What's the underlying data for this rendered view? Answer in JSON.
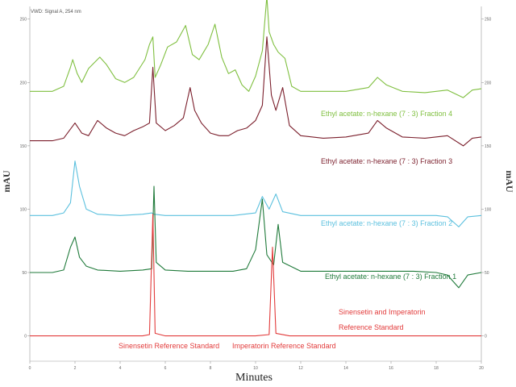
{
  "chart_data": {
    "type": "line",
    "header": "VWD: Signal A, 254 nm",
    "xlabel": "Minutes",
    "ylabel_left": "mAU",
    "ylabel_right": "mAU",
    "xlim": [
      0,
      20
    ],
    "x_ticks": [
      "0",
      "2",
      "4",
      "6",
      "8",
      "10",
      "12",
      "14",
      "16",
      "18",
      "20"
    ],
    "ylim": [
      -20,
      260
    ],
    "y_ticks_left": [
      "0",
      "50",
      "100",
      "150",
      "200",
      "250"
    ],
    "series": [
      {
        "name": "Ethyl acetate: n-hexane (7 : 3) Fraction 4",
        "color": "#7fbf3f",
        "points": [
          [
            0,
            193
          ],
          [
            1,
            193
          ],
          [
            1.5,
            197
          ],
          [
            1.8,
            212
          ],
          [
            1.9,
            218
          ],
          [
            2.1,
            207
          ],
          [
            2.3,
            200
          ],
          [
            2.6,
            211
          ],
          [
            3.1,
            220
          ],
          [
            3.4,
            214
          ],
          [
            3.8,
            203
          ],
          [
            4.2,
            200
          ],
          [
            4.6,
            204
          ],
          [
            5.1,
            218
          ],
          [
            5.3,
            230
          ],
          [
            5.45,
            236
          ],
          [
            5.55,
            204
          ],
          [
            5.8,
            214
          ],
          [
            6.1,
            228
          ],
          [
            6.5,
            232
          ],
          [
            6.9,
            245
          ],
          [
            7.2,
            222
          ],
          [
            7.5,
            218
          ],
          [
            7.9,
            230
          ],
          [
            8.2,
            246
          ],
          [
            8.5,
            220
          ],
          [
            8.8,
            207
          ],
          [
            9.1,
            210
          ],
          [
            9.4,
            198
          ],
          [
            9.7,
            193
          ],
          [
            10.0,
            205
          ],
          [
            10.3,
            225
          ],
          [
            10.5,
            268
          ],
          [
            10.6,
            240
          ],
          [
            10.8,
            230
          ],
          [
            11.0,
            224
          ],
          [
            11.3,
            219
          ],
          [
            11.6,
            197
          ],
          [
            12.0,
            193
          ],
          [
            13.0,
            193
          ],
          [
            14.0,
            193
          ],
          [
            15.0,
            196
          ],
          [
            15.4,
            204
          ],
          [
            15.8,
            198
          ],
          [
            16.5,
            193
          ],
          [
            17.5,
            192
          ],
          [
            18.5,
            194
          ],
          [
            19.2,
            188
          ],
          [
            19.6,
            194
          ],
          [
            20,
            195
          ]
        ]
      },
      {
        "name": "Ethyl acetate: n-hexane (7 : 3) Fraction 3",
        "color": "#7b1f2c",
        "points": [
          [
            0,
            154
          ],
          [
            1,
            154
          ],
          [
            1.5,
            156
          ],
          [
            2.0,
            168
          ],
          [
            2.3,
            160
          ],
          [
            2.6,
            158
          ],
          [
            3.0,
            170
          ],
          [
            3.4,
            164
          ],
          [
            3.8,
            160
          ],
          [
            4.2,
            158
          ],
          [
            4.6,
            162
          ],
          [
            5.0,
            165
          ],
          [
            5.3,
            168
          ],
          [
            5.45,
            212
          ],
          [
            5.6,
            168
          ],
          [
            6.0,
            162
          ],
          [
            6.4,
            166
          ],
          [
            6.8,
            172
          ],
          [
            7.1,
            196
          ],
          [
            7.3,
            178
          ],
          [
            7.6,
            168
          ],
          [
            8.0,
            160
          ],
          [
            8.4,
            158
          ],
          [
            8.8,
            158
          ],
          [
            9.2,
            162
          ],
          [
            9.6,
            164
          ],
          [
            10.0,
            170
          ],
          [
            10.3,
            182
          ],
          [
            10.5,
            236
          ],
          [
            10.7,
            190
          ],
          [
            10.9,
            178
          ],
          [
            11.2,
            196
          ],
          [
            11.5,
            166
          ],
          [
            12.0,
            158
          ],
          [
            13.0,
            156
          ],
          [
            14.0,
            157
          ],
          [
            15.0,
            160
          ],
          [
            15.4,
            170
          ],
          [
            15.8,
            164
          ],
          [
            16.5,
            157
          ],
          [
            17.5,
            156
          ],
          [
            18.5,
            158
          ],
          [
            19.2,
            150
          ],
          [
            19.6,
            156
          ],
          [
            20,
            157
          ]
        ]
      },
      {
        "name": "Ethyl acetate: n-hexane (7 : 3) Fraction 2",
        "color": "#5bc0de",
        "points": [
          [
            0,
            95
          ],
          [
            1,
            95
          ],
          [
            1.5,
            97
          ],
          [
            1.8,
            105
          ],
          [
            2.0,
            138
          ],
          [
            2.2,
            118
          ],
          [
            2.5,
            100
          ],
          [
            3.0,
            96
          ],
          [
            4.0,
            95
          ],
          [
            5.0,
            96
          ],
          [
            5.4,
            97
          ],
          [
            5.5,
            96
          ],
          [
            6.0,
            95
          ],
          [
            7.0,
            95
          ],
          [
            8.0,
            95
          ],
          [
            9.0,
            95
          ],
          [
            10.0,
            97
          ],
          [
            10.3,
            110
          ],
          [
            10.6,
            100
          ],
          [
            10.9,
            112
          ],
          [
            11.2,
            98
          ],
          [
            12.0,
            95
          ],
          [
            13.0,
            95
          ],
          [
            14.0,
            95
          ],
          [
            15.0,
            95
          ],
          [
            16.0,
            95
          ],
          [
            17.0,
            95
          ],
          [
            18.0,
            95
          ],
          [
            18.5,
            94
          ],
          [
            19.0,
            86
          ],
          [
            19.4,
            94
          ],
          [
            20,
            95
          ]
        ]
      },
      {
        "name": "Ethyl acetate: n-hexane (7 : 3) Fraction 1",
        "color": "#1f7a3a",
        "points": [
          [
            0,
            50
          ],
          [
            1,
            50
          ],
          [
            1.5,
            52
          ],
          [
            1.8,
            70
          ],
          [
            2.0,
            78
          ],
          [
            2.2,
            62
          ],
          [
            2.5,
            55
          ],
          [
            3.0,
            52
          ],
          [
            4.0,
            51
          ],
          [
            5.0,
            52
          ],
          [
            5.4,
            53
          ],
          [
            5.5,
            118
          ],
          [
            5.6,
            58
          ],
          [
            6.0,
            52
          ],
          [
            7.0,
            51
          ],
          [
            8.0,
            51
          ],
          [
            9.0,
            51
          ],
          [
            9.6,
            53
          ],
          [
            10.0,
            68
          ],
          [
            10.3,
            108
          ],
          [
            10.5,
            64
          ],
          [
            10.8,
            56
          ],
          [
            11.0,
            88
          ],
          [
            11.2,
            58
          ],
          [
            12.0,
            51
          ],
          [
            13.0,
            51
          ],
          [
            14.0,
            51
          ],
          [
            15.0,
            51
          ],
          [
            16.0,
            51
          ],
          [
            17.0,
            51
          ],
          [
            18.0,
            50
          ],
          [
            18.5,
            48
          ],
          [
            19.0,
            38
          ],
          [
            19.4,
            48
          ],
          [
            20,
            50
          ]
        ]
      },
      {
        "name": "Sinensetin and Imperatorin Reference Standard",
        "color": "#e23b3b",
        "points": [
          [
            0,
            0
          ],
          [
            1,
            0
          ],
          [
            2,
            0
          ],
          [
            3,
            0
          ],
          [
            4,
            0
          ],
          [
            5,
            0
          ],
          [
            5.3,
            1
          ],
          [
            5.45,
            96
          ],
          [
            5.55,
            2
          ],
          [
            6.0,
            0
          ],
          [
            7,
            0
          ],
          [
            8,
            0
          ],
          [
            9,
            0
          ],
          [
            10,
            0
          ],
          [
            10.6,
            1
          ],
          [
            10.75,
            70
          ],
          [
            10.9,
            2
          ],
          [
            11.5,
            0
          ],
          [
            12,
            0
          ],
          [
            14,
            0
          ],
          [
            16,
            0
          ],
          [
            18,
            0
          ],
          [
            20,
            0
          ]
        ]
      }
    ],
    "annotations": {
      "sinensetin": "Sinensetin Reference Standard",
      "imperatorin": "Imperatorin Reference Standard",
      "combined": [
        "Sinensetin and Imperatorin",
        "Reference Standard"
      ]
    },
    "grid": false,
    "legend": "inline"
  }
}
